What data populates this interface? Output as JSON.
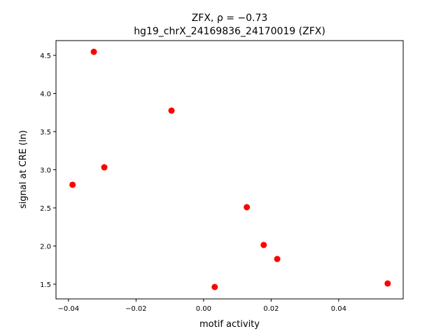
{
  "chart_data": {
    "type": "scatter",
    "title": "ZFX, ρ = −0.73",
    "subtitle": "hg19_chrX_24169836_24170019 (ZFX)",
    "x_label": "motif activity",
    "y_label": "signal at CRE (ln)",
    "color": "#ff0000",
    "x": [
      -0.0325,
      -0.0095,
      -0.0294,
      -0.0388,
      0.0128,
      0.0178,
      0.0218,
      0.0033,
      0.0545
    ],
    "values": [
      4.546,
      3.775,
      3.032,
      2.803,
      2.509,
      2.014,
      1.83,
      1.463,
      1.509
    ],
    "xlim": [
      -0.0437,
      0.0591
    ],
    "ylim": [
      1.307,
      4.693
    ],
    "xticks": [
      {
        "value": -0.04,
        "label": "−0.04"
      },
      {
        "value": -0.02,
        "label": "−0.02"
      },
      {
        "value": 0,
        "label": "0.00"
      },
      {
        "value": 0.02,
        "label": "0.02"
      },
      {
        "value": 0.04,
        "label": "0.04"
      }
    ],
    "yticks": [
      1.5,
      {
        "value": 2,
        "label": "2.0"
      },
      2.5,
      {
        "value": 3,
        "label": "3.0"
      },
      3.5,
      {
        "value": 4,
        "label": "4.0"
      },
      4.5
    ],
    "grid": false
  }
}
